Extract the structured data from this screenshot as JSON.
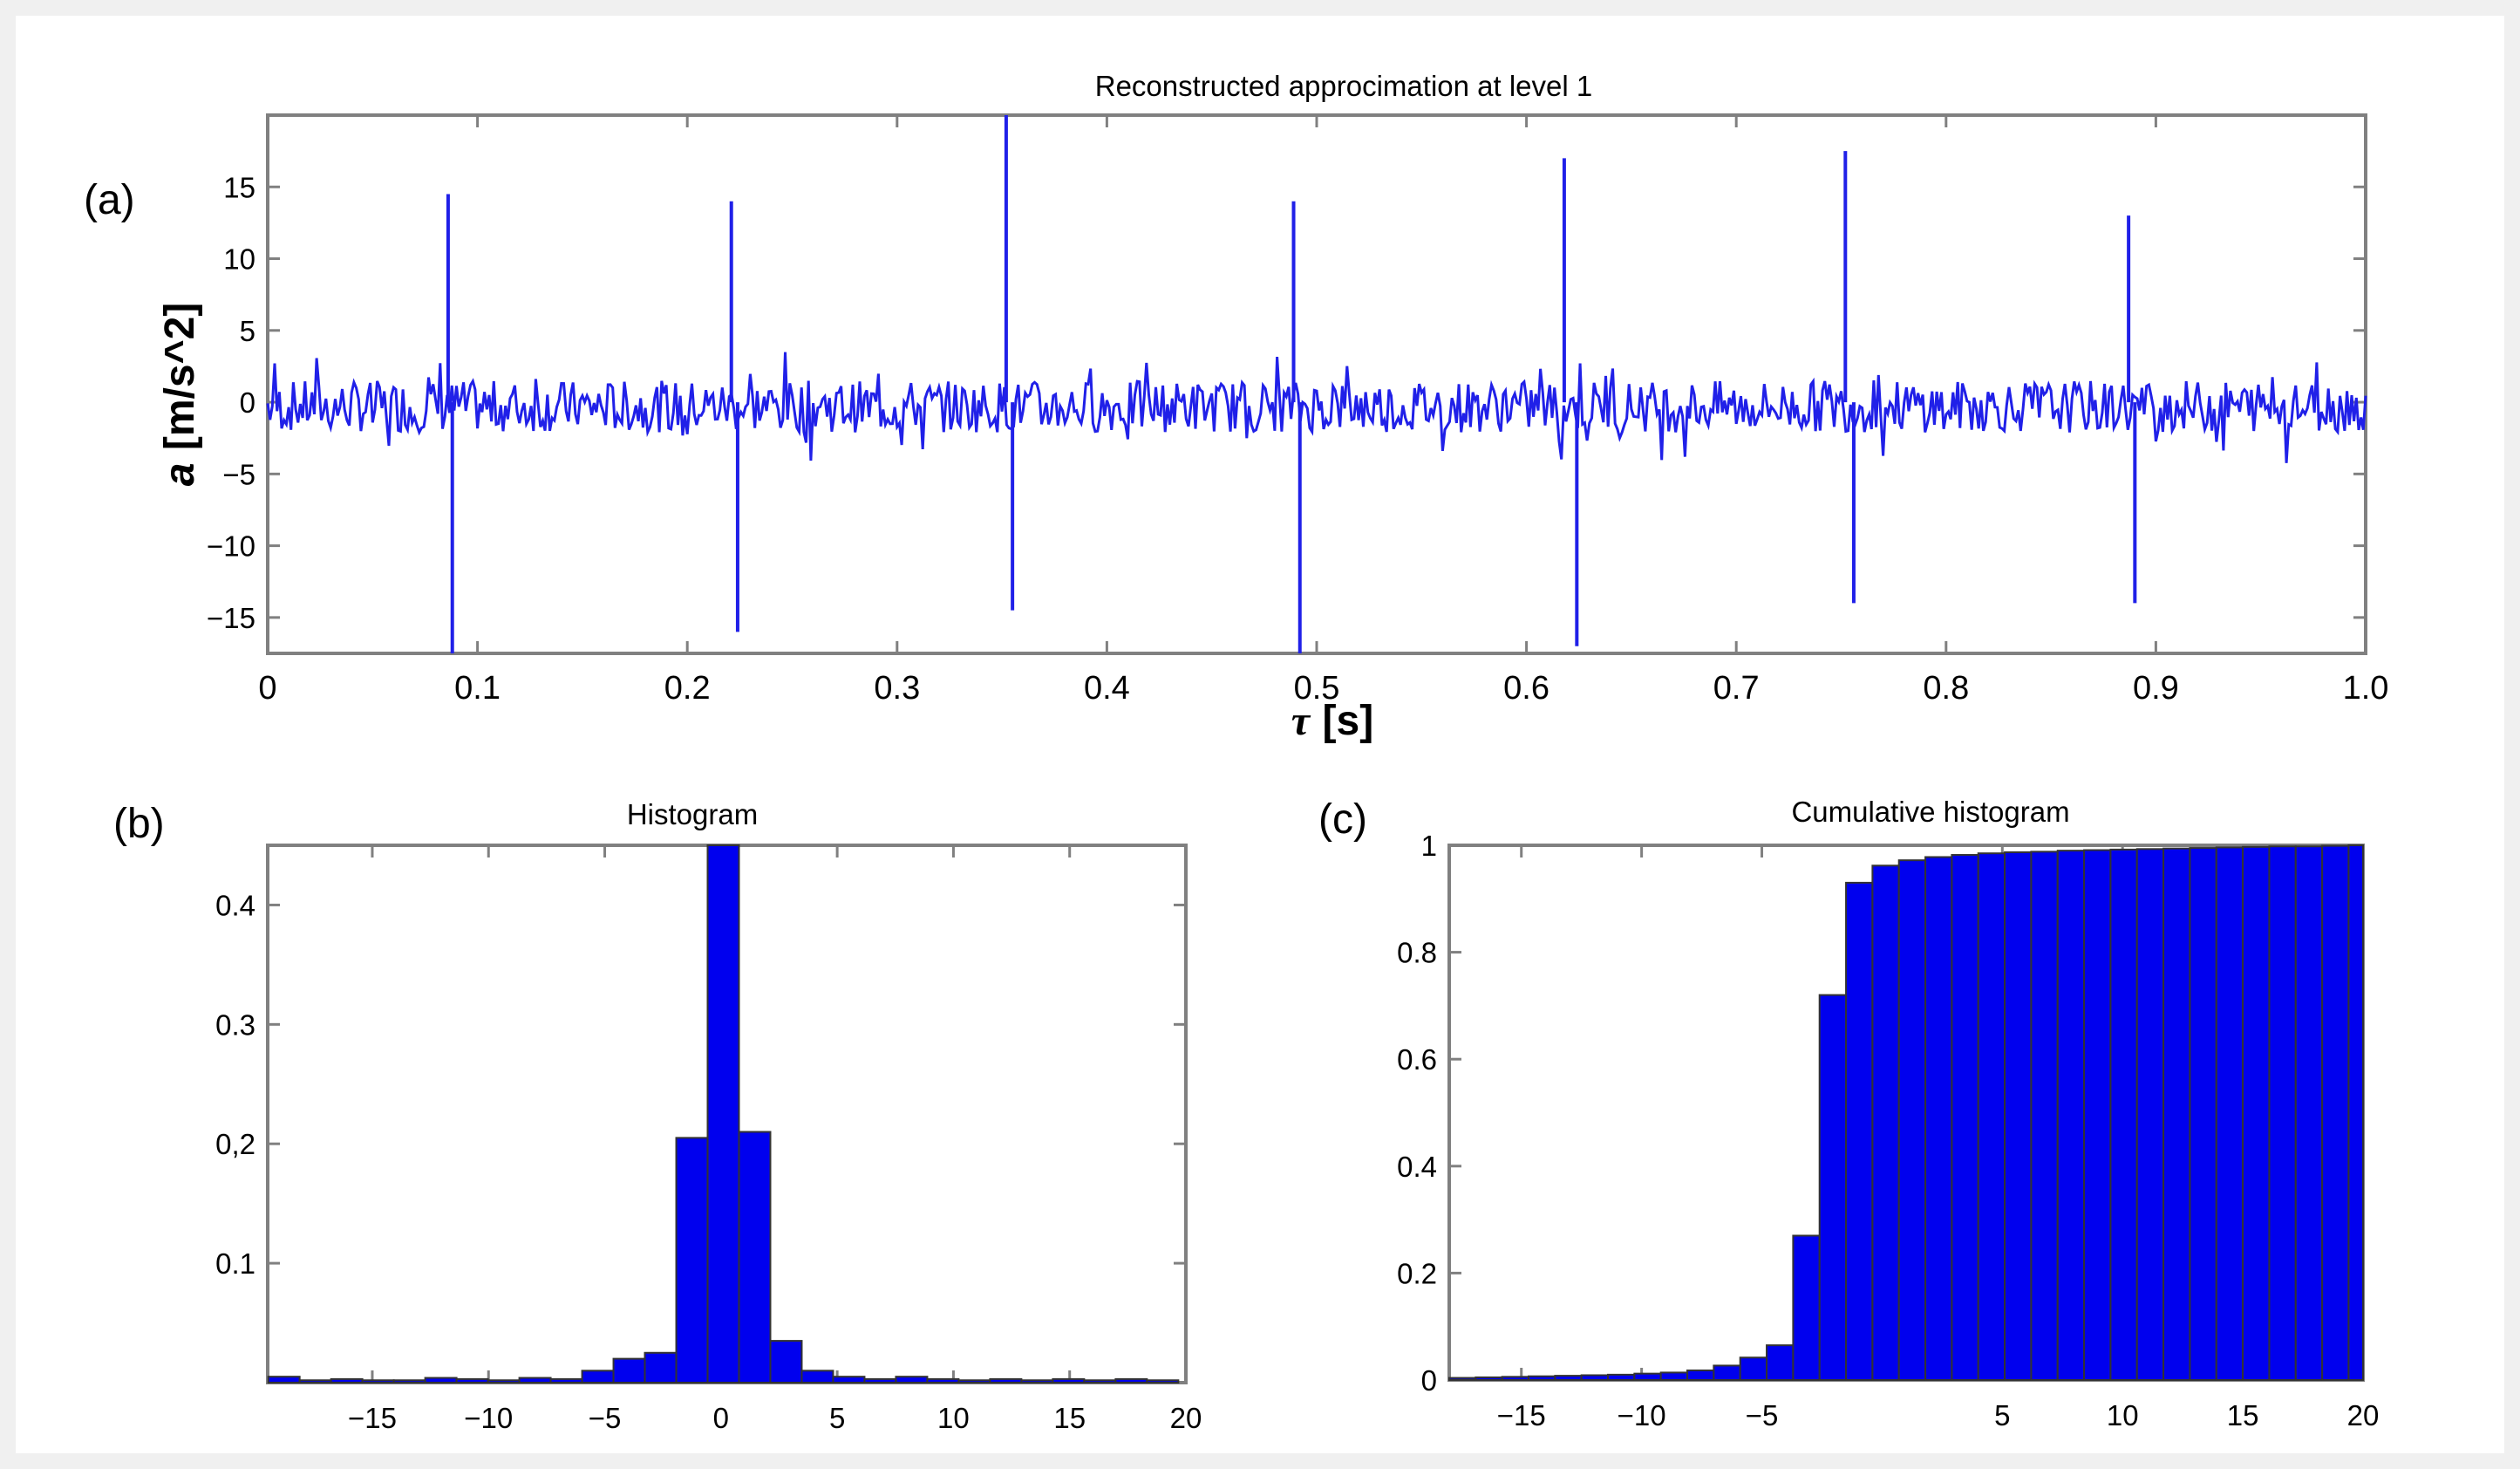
{
  "colors": {
    "series": "#2020e8",
    "bar_fill": "#0000ee",
    "frame": "#808080",
    "background": "#f0f0f0"
  },
  "labels": {
    "a": "(a)",
    "b": "(b)",
    "c": "(c)"
  },
  "chart_data": [
    {
      "type": "line",
      "title": "Reconstructed approcimation at level 1",
      "xlabel_symbol": "τ",
      "xlabel_unit": "[s]",
      "ylabel_symbol": "a",
      "ylabel_unit": "[m/s^2]",
      "xlim": [
        0,
        1.0
      ],
      "ylim": [
        -17.5,
        20
      ],
      "xticks": [
        0,
        0.1,
        0.2,
        0.3,
        0.4,
        0.5,
        0.6,
        0.7,
        0.8,
        0.9,
        1.0
      ],
      "xtick_labels": [
        "0",
        "0.1",
        "0.2",
        "0.3",
        "0.4",
        "0.5",
        "0.6",
        "0.7",
        "0.8",
        "0.9",
        "1.0"
      ],
      "yticks": [
        -15,
        -10,
        -5,
        0,
        5,
        10,
        15
      ],
      "ytick_labels": [
        "−15",
        "−10",
        "−5",
        "0",
        "5",
        "10",
        "15"
      ],
      "grid": false,
      "x": [
        0.086,
        0.088,
        0.221,
        0.224,
        0.352,
        0.355,
        0.489,
        0.492,
        0.618,
        0.624,
        0.752,
        0.756,
        0.887,
        0.89
      ],
      "y": [
        14.5,
        -17.5,
        14.0,
        -16.0,
        20.0,
        -14.5,
        14.0,
        -17.5,
        17.0,
        -17.0,
        17.5,
        -14.0,
        13.0,
        -14.0
      ],
      "noise_amplitude": 1.8
    },
    {
      "type": "bar",
      "title": "Histogram",
      "xlim": [
        -19.5,
        20
      ],
      "ylim": [
        0,
        0.45
      ],
      "xticks": [
        -15,
        -10,
        -5,
        0,
        5,
        10,
        15,
        20
      ],
      "xtick_labels": [
        "−15",
        "−10",
        "−5",
        "0",
        "5",
        "10",
        "15",
        "20"
      ],
      "yticks": [
        0.1,
        0.2,
        0.3,
        0.4
      ],
      "ytick_labels": [
        "0.1",
        "0,2",
        "0.3",
        "0.4"
      ],
      "bin_width": 1.35,
      "categories": [
        -18.8,
        -17.45,
        -16.1,
        -14.75,
        -13.4,
        -12.05,
        -10.7,
        -9.35,
        -8.0,
        -6.65,
        -5.3,
        -3.95,
        -2.6,
        -1.25,
        0.1,
        1.45,
        2.8,
        4.15,
        5.5,
        6.85,
        8.2,
        9.55,
        10.9,
        12.25,
        13.6,
        14.95,
        16.3,
        17.65,
        19.0
      ],
      "values": [
        0.005,
        0.002,
        0.003,
        0.002,
        0.002,
        0.004,
        0.003,
        0.002,
        0.004,
        0.003,
        0.01,
        0.02,
        0.025,
        0.205,
        0.45,
        0.21,
        0.035,
        0.01,
        0.005,
        0.003,
        0.005,
        0.003,
        0.002,
        0.003,
        0.002,
        0.003,
        0.002,
        0.003,
        0.002
      ]
    },
    {
      "type": "bar",
      "title": "Cumulative histogram",
      "xlim": [
        -18,
        20
      ],
      "ylim": [
        0,
        1
      ],
      "xticks": [
        -15,
        -10,
        -5,
        5,
        10,
        15,
        20
      ],
      "xtick_labels": [
        "−15",
        "−10",
        "−5",
        "5",
        "10",
        "15",
        "20"
      ],
      "yticks": [
        0,
        0.2,
        0.4,
        0.6,
        0.8,
        1
      ],
      "ytick_labels": [
        "0",
        "0.2",
        "0.4",
        "0.6",
        "0.8",
        "1"
      ],
      "bin_width": 1.1,
      "categories": [
        -17.45,
        -16.35,
        -15.25,
        -14.15,
        -13.05,
        -11.95,
        -10.85,
        -9.75,
        -8.65,
        -7.55,
        -6.45,
        -5.35,
        -4.25,
        -3.15,
        -2.05,
        -0.95,
        0.15,
        1.25,
        2.35,
        3.45,
        4.55,
        5.65,
        6.75,
        7.85,
        8.95,
        10.05,
        11.15,
        12.25,
        13.35,
        14.45,
        15.55,
        16.65,
        17.75,
        18.85,
        19.95
      ],
      "values": [
        0.004,
        0.005,
        0.006,
        0.007,
        0.008,
        0.009,
        0.01,
        0.012,
        0.014,
        0.018,
        0.027,
        0.042,
        0.065,
        0.27,
        0.72,
        0.93,
        0.962,
        0.972,
        0.978,
        0.982,
        0.985,
        0.987,
        0.988,
        0.99,
        0.991,
        0.992,
        0.993,
        0.994,
        0.995,
        0.996,
        0.997,
        0.998,
        0.998,
        0.999,
        1.0
      ]
    }
  ]
}
